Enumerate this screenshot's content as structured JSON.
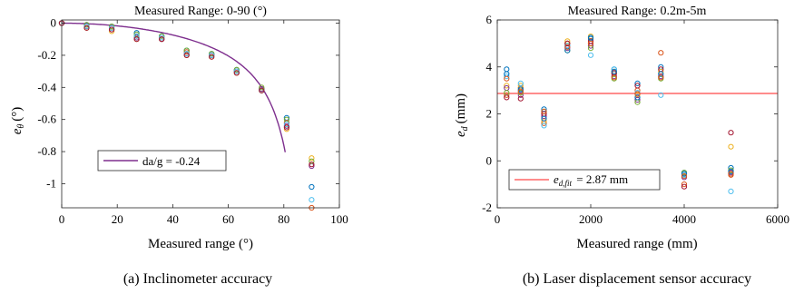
{
  "colors": [
    "#0072BD",
    "#D95319",
    "#EDB120",
    "#7E2F8E",
    "#77AC30",
    "#4DBEEE",
    "#A2142F"
  ],
  "chart_data": [
    {
      "type": "scatter",
      "title": "Measured Range: 0-90 (°)",
      "xlabel": "Measured range (°)",
      "ylabel_main": "e",
      "ylabel_sub": "θ",
      "ylabel_unit": "(°)",
      "caption": "(a) Inclinometer accuracy",
      "xlim": [
        0,
        100
      ],
      "ylim": [
        -1.15,
        0.02
      ],
      "xticks": [
        0,
        20,
        40,
        60,
        80,
        100
      ],
      "xtick_labels": [
        "0",
        "20",
        "40",
        "60",
        "80",
        "100"
      ],
      "yticks": [
        0,
        -0.2,
        -0.4,
        -0.6,
        -0.8,
        -1
      ],
      "ytick_labels": [
        "0",
        "-0.2",
        "-0.4",
        "-0.6",
        "-0.8",
        "-1"
      ],
      "x": [
        0,
        9,
        18,
        27,
        36,
        45,
        54,
        63,
        72,
        81,
        90
      ],
      "groups": [
        [
          0.0,
          0.0,
          0.0,
          0.0,
          0.0,
          0.0,
          0.0
        ],
        [
          -0.01,
          -0.02,
          -0.03,
          -0.02,
          -0.01,
          -0.02,
          -0.03
        ],
        [
          -0.02,
          -0.03,
          -0.05,
          -0.04,
          -0.02,
          -0.03,
          -0.04
        ],
        [
          -0.06,
          -0.08,
          -0.1,
          -0.09,
          -0.07,
          -0.08,
          -0.1
        ],
        [
          -0.08,
          -0.09,
          -0.1,
          -0.1,
          -0.08,
          -0.09,
          -0.1
        ],
        [
          -0.17,
          -0.18,
          -0.2,
          -0.19,
          -0.17,
          -0.19,
          -0.2
        ],
        [
          -0.19,
          -0.2,
          -0.21,
          -0.2,
          -0.19,
          -0.2,
          -0.21
        ],
        [
          -0.29,
          -0.3,
          -0.31,
          -0.3,
          -0.29,
          -0.3,
          -0.31
        ],
        [
          -0.41,
          -0.41,
          -0.42,
          -0.41,
          -0.4,
          -0.42,
          -0.42
        ],
        [
          -0.59,
          -0.62,
          -0.66,
          -0.64,
          -0.6,
          -0.63,
          -0.65
        ],
        [
          -1.02,
          -1.15,
          -0.84,
          -0.89,
          -0.86,
          -1.1,
          -0.88
        ]
      ],
      "fit": {
        "type": "line",
        "legend": "da/g = -0.24",
        "a": -0.24,
        "xmax": 80.5
      },
      "legend_position": "center-left"
    },
    {
      "type": "scatter",
      "title": "Measured Range: 0.2m-5m",
      "xlabel": "Measured range (mm)",
      "ylabel_main": "e",
      "ylabel_sub": "d",
      "ylabel_unit": "(mm)",
      "caption": "(b) Laser displacement sensor accuracy",
      "xlim": [
        0,
        6000
      ],
      "ylim": [
        -2,
        6
      ],
      "xticks": [
        0,
        2000,
        4000,
        6000
      ],
      "xtick_labels": [
        "0",
        "2000",
        "4000",
        "6000"
      ],
      "yticks": [
        -2,
        0,
        2,
        4,
        6
      ],
      "ytick_labels": [
        "-2",
        "0",
        "2",
        "4",
        "6"
      ],
      "x": [
        200,
        500,
        1000,
        1500,
        2000,
        2500,
        3000,
        3500,
        4000,
        5000
      ],
      "groups": [
        [
          3.9,
          2.8,
          3.2,
          3.1,
          2.9,
          3.6,
          2.7,
          3.7,
          3.5
        ],
        [
          3.0,
          3.1,
          3.2,
          2.8,
          2.9,
          3.3,
          2.65,
          3.05,
          2.95
        ],
        [
          2.2,
          1.6,
          1.7,
          1.9,
          2.1,
          1.5,
          2.0,
          1.8,
          2.1
        ],
        [
          4.9,
          5.0,
          5.1,
          4.8,
          4.7,
          4.9,
          5.0,
          4.7,
          4.85
        ],
        [
          5.2,
          5.0,
          5.3,
          4.9,
          4.8,
          4.5,
          5.1,
          5.25,
          5.0
        ],
        [
          3.9,
          3.7,
          3.8,
          3.6,
          3.5,
          3.9,
          3.75,
          3.8,
          3.55
        ],
        [
          3.3,
          3.0,
          2.8,
          2.6,
          2.5,
          2.9,
          3.2,
          2.7,
          2.85
        ],
        [
          4.0,
          4.6,
          3.8,
          3.6,
          3.5,
          2.8,
          3.9,
          3.7,
          3.55
        ],
        [
          -0.5,
          -1.0,
          -0.6,
          -0.7,
          -0.5,
          -0.6,
          -1.1,
          -0.55,
          -0.65
        ],
        [
          -0.3,
          -0.6,
          0.6,
          -0.5,
          -0.4,
          -1.3,
          1.2,
          -0.45,
          -0.55
        ]
      ],
      "fit": {
        "type": "hline",
        "legend": "2.87 mm",
        "legend_main": "e",
        "legend_sub": "d,fit",
        "value": 2.87
      },
      "legend_position": "bottom-left"
    }
  ]
}
